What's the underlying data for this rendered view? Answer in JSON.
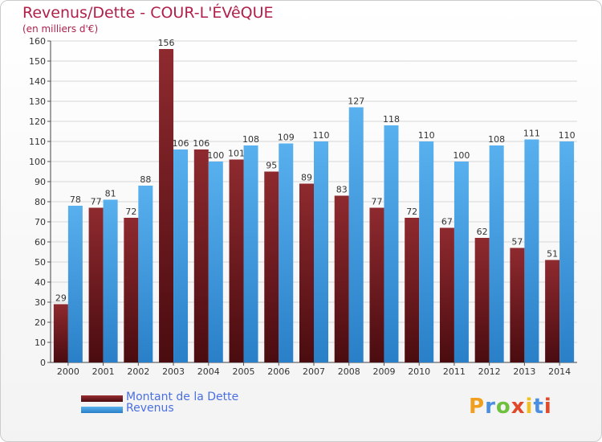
{
  "chart_data": {
    "type": "bar",
    "title": "Revenus/Dette - COUR-L'ÉVêQUE",
    "subtitle": "(en milliers d'€)",
    "categories": [
      "2000",
      "2001",
      "2002",
      "2003",
      "2004",
      "2005",
      "2006",
      "2007",
      "2008",
      "2009",
      "2010",
      "2011",
      "2012",
      "2013",
      "2014"
    ],
    "series": [
      {
        "name": "Montant de la Dette",
        "color": "#7a1e22",
        "values": [
          29,
          77,
          72,
          156,
          106,
          101,
          95,
          89,
          83,
          77,
          72,
          67,
          62,
          57,
          51
        ]
      },
      {
        "name": "Revenus",
        "color": "#45a3e6",
        "values": [
          78,
          81,
          88,
          106,
          100,
          108,
          109,
          110,
          127,
          118,
          110,
          100,
          108,
          111,
          110
        ]
      }
    ],
    "ylim": [
      0,
      160
    ],
    "yticks": [
      0,
      10,
      20,
      30,
      40,
      50,
      60,
      70,
      80,
      90,
      100,
      110,
      120,
      130,
      140,
      150,
      160
    ],
    "grid": true,
    "legend": "bottom-left"
  },
  "brand": {
    "letters": [
      "P",
      "r",
      "o",
      "x",
      "i",
      "t",
      "i"
    ],
    "colors": [
      "#f0a020",
      "#4a8fe0",
      "#70c040",
      "#e04a2a",
      "#f0c020",
      "#4a8fe0",
      "#e04a2a"
    ]
  }
}
